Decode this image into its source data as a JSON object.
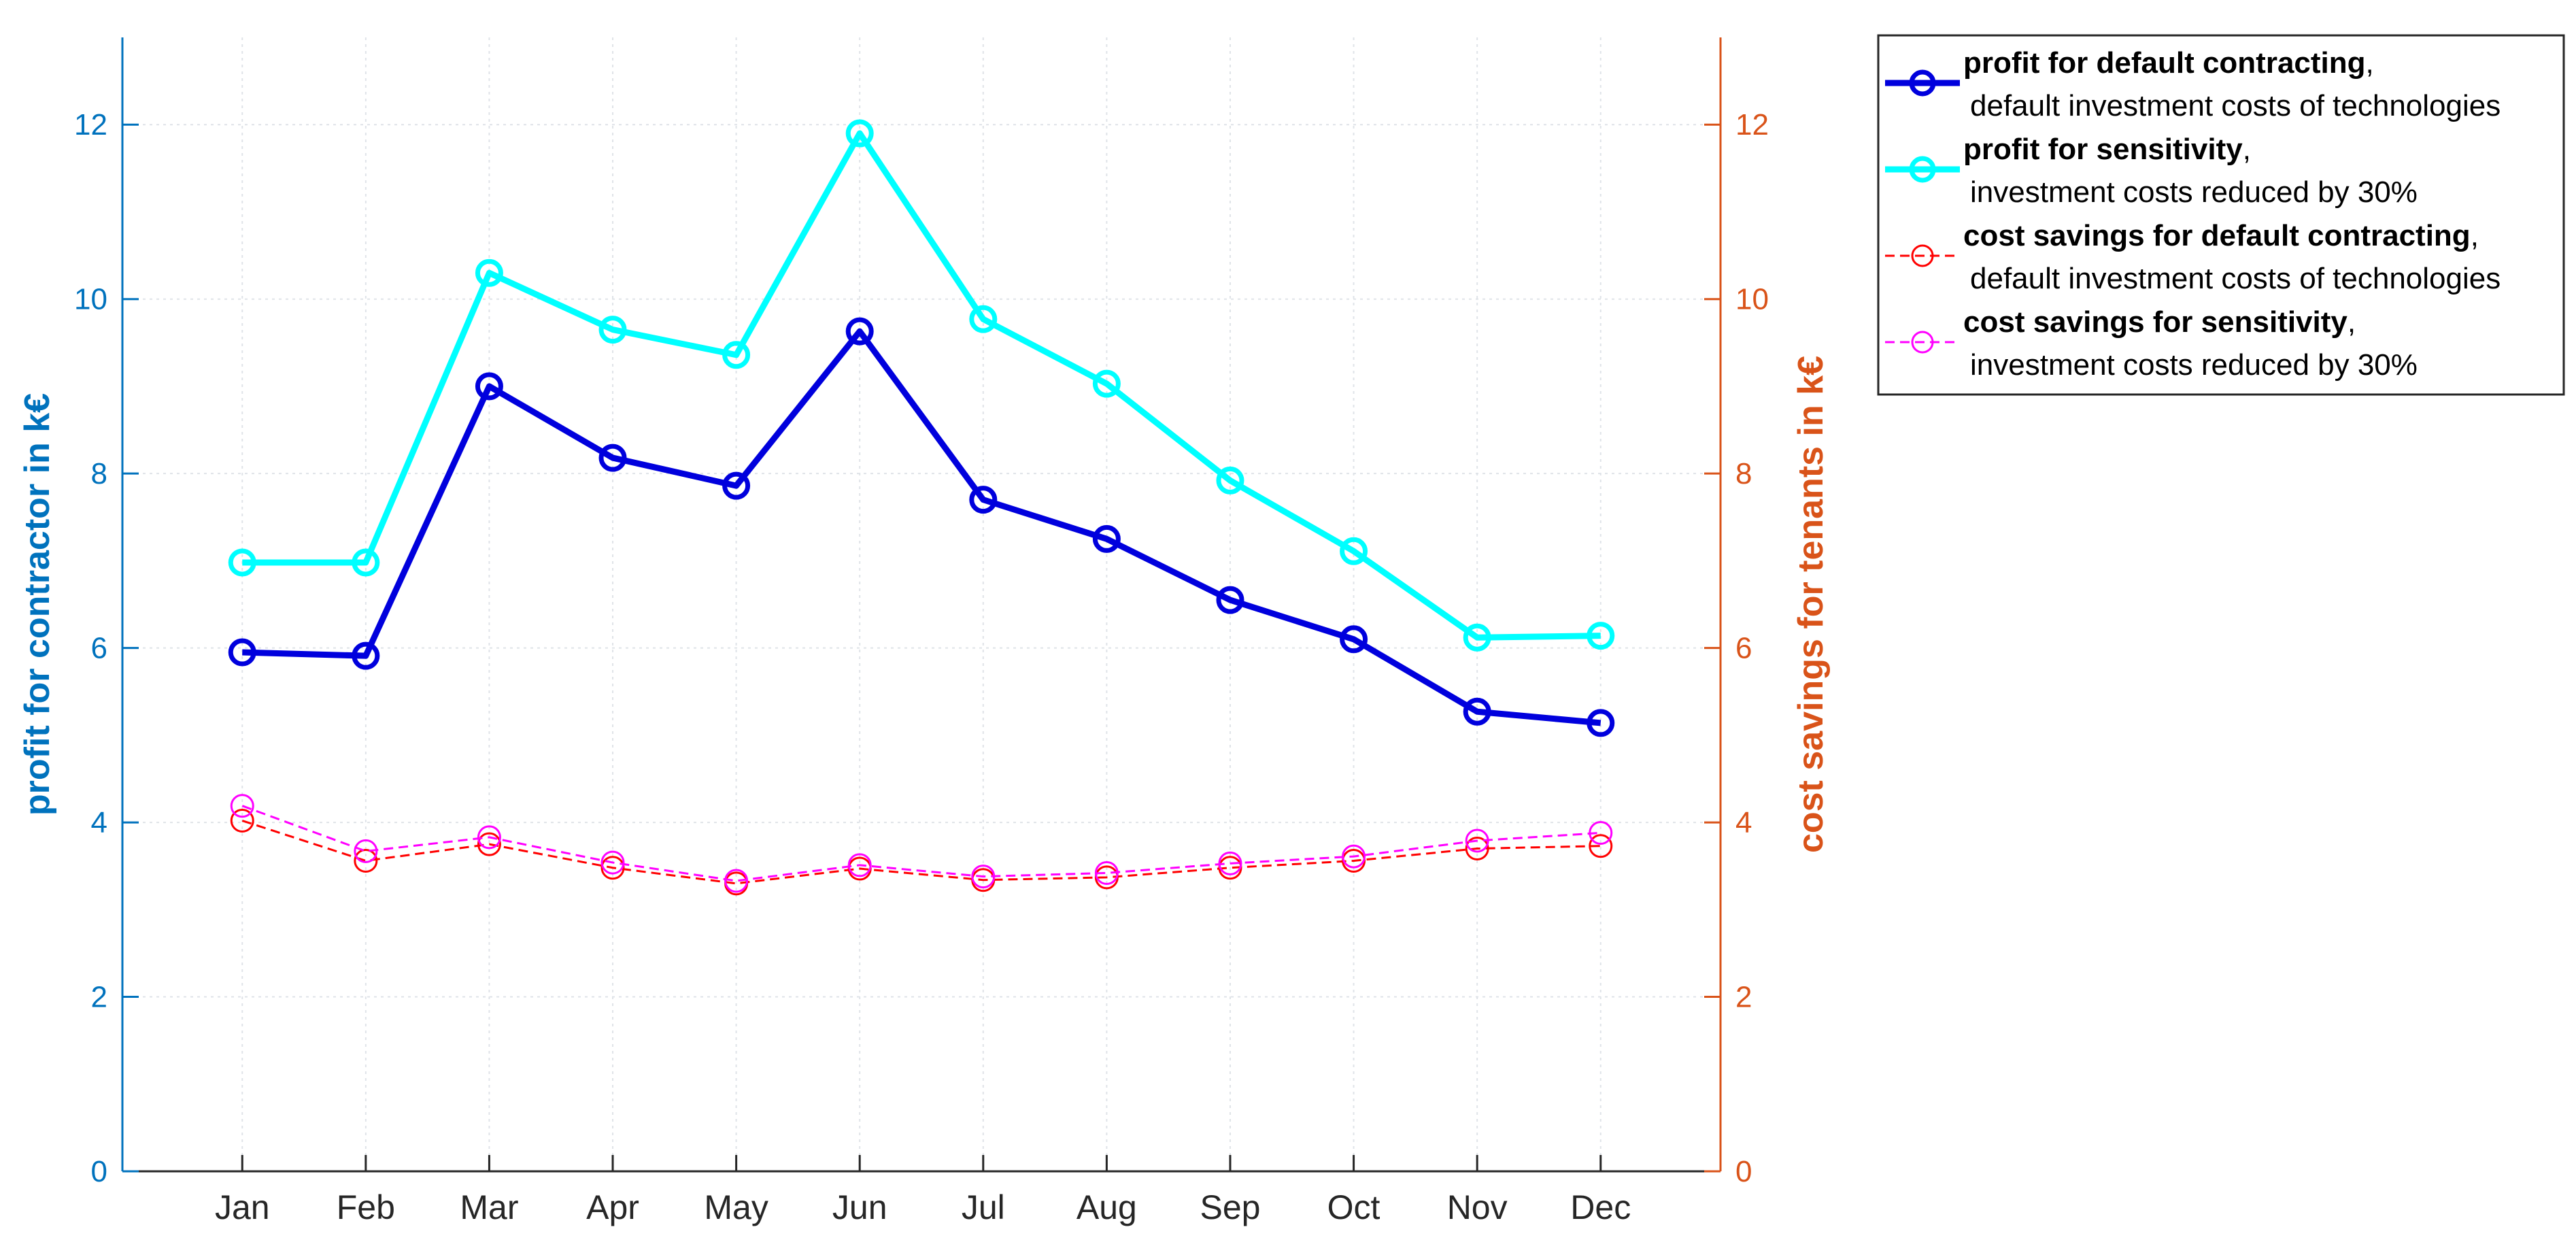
{
  "chart_data": {
    "type": "line",
    "categories": [
      "Jan",
      "Feb",
      "Mar",
      "Apr",
      "May",
      "Jun",
      "Jul",
      "Aug",
      "Sep",
      "Oct",
      "Nov",
      "Dec"
    ],
    "left_axis": {
      "label": "profit for contractor in k€",
      "ylim": [
        0,
        13
      ],
      "ticks": [
        0,
        2,
        4,
        6,
        8,
        10,
        12
      ],
      "color": "#0072BD"
    },
    "right_axis": {
      "label": "cost savings for tenants in k€",
      "ylim": [
        0,
        13
      ],
      "ticks": [
        0,
        2,
        4,
        6,
        8,
        10,
        12
      ],
      "color": "#D95319"
    },
    "grid": true,
    "legend_position": "outside-top-right",
    "series": [
      {
        "name_bold": "profit for default contracting",
        "name_suffix": ",",
        "name_line2": "default investment costs of technologies",
        "axis": "left",
        "color": "#0000DD",
        "style": "solid-thick",
        "values": [
          5.95,
          5.91,
          9.0,
          8.18,
          7.86,
          9.63,
          7.7,
          7.25,
          6.55,
          6.1,
          5.27,
          5.14
        ]
      },
      {
        "name_bold": "profit for sensitivity",
        "name_suffix": ",",
        "name_line2": "investment costs reduced by 30%",
        "axis": "left",
        "color": "#00FFFF",
        "style": "solid-thick",
        "values": [
          6.98,
          6.98,
          10.3,
          9.65,
          9.36,
          11.9,
          9.77,
          9.03,
          7.92,
          7.11,
          6.12,
          6.14
        ]
      },
      {
        "name_bold": "cost savings for default contracting",
        "name_suffix": ",",
        "name_line2": "default investment costs of technologies",
        "axis": "right",
        "color": "#FF0000",
        "style": "dashed-thin",
        "values": [
          4.02,
          3.56,
          3.75,
          3.48,
          3.3,
          3.47,
          3.34,
          3.37,
          3.48,
          3.56,
          3.7,
          3.73
        ]
      },
      {
        "name_bold": "cost savings for sensitivity",
        "name_suffix": ",",
        "name_line2": "investment costs reduced by 30%",
        "axis": "right",
        "color": "#FF00FF",
        "style": "dashed-thin",
        "values": [
          4.19,
          3.67,
          3.83,
          3.54,
          3.33,
          3.51,
          3.38,
          3.42,
          3.53,
          3.61,
          3.79,
          3.88
        ]
      }
    ]
  }
}
